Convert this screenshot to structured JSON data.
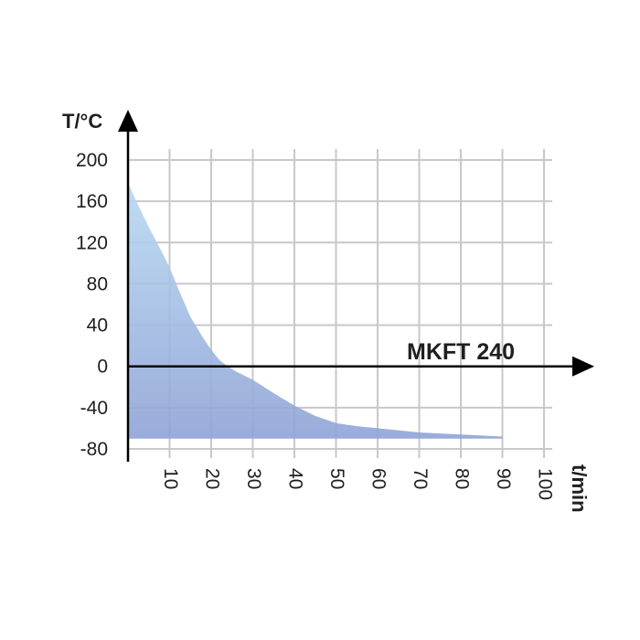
{
  "chart_data": {
    "type": "area",
    "title": "",
    "model_label": "MKFT 240",
    "xlabel": "t/min",
    "ylabel": "T/°C",
    "xlim": [
      0,
      100
    ],
    "ylim": [
      -80,
      200
    ],
    "x_ticks": [
      10,
      20,
      30,
      40,
      50,
      60,
      70,
      80,
      90,
      100
    ],
    "y_ticks": [
      200,
      160,
      120,
      80,
      40,
      0,
      -40,
      -80
    ],
    "grid": true,
    "series": [
      {
        "x": [
          0,
          2,
          5,
          8,
          10,
          12,
          15,
          18,
          20,
          22,
          24,
          26,
          28,
          30,
          35,
          40,
          45,
          50,
          55,
          60,
          65,
          70,
          75,
          80,
          85,
          90
        ],
        "y": [
          178,
          160,
          135,
          112,
          96,
          76,
          48,
          28,
          16,
          6,
          0,
          -5,
          -9,
          -13,
          -26,
          -38,
          -48,
          -55,
          -58,
          -60,
          -62,
          -64,
          -65,
          -66,
          -67,
          -68
        ]
      }
    ],
    "floor_y": -70,
    "colors": {
      "fill_top": "#b8d9f2",
      "fill_bottom": "#8fa3d6",
      "grid": "#c8c8c8",
      "axis": "#000000"
    }
  }
}
